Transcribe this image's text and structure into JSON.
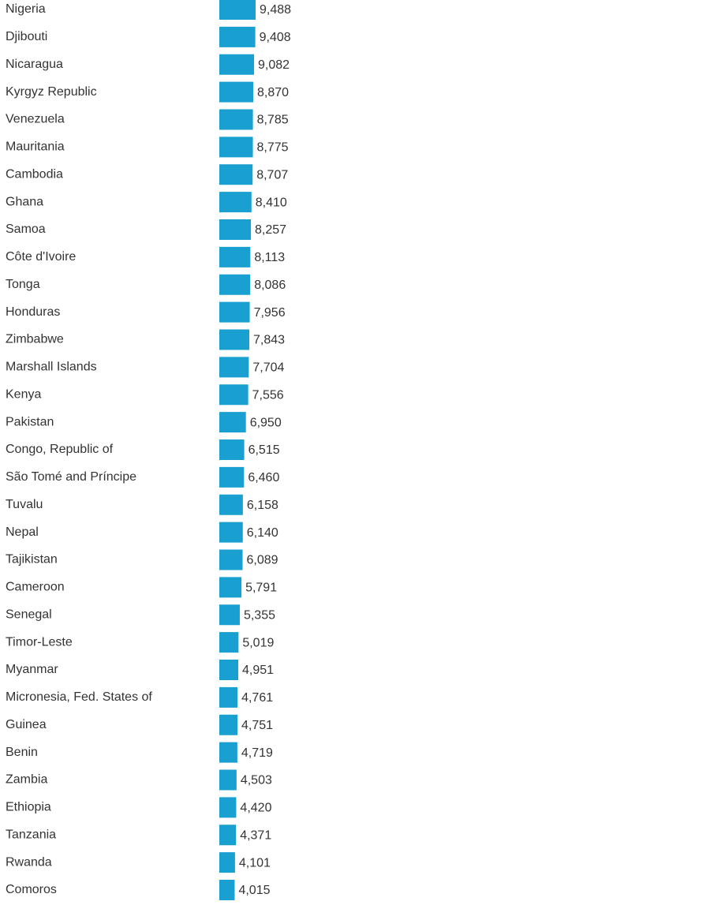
{
  "chart_data": {
    "type": "bar",
    "orientation": "horizontal",
    "color": "#1a9fd1",
    "categories": [
      "Nigeria",
      "Djibouti",
      "Nicaragua",
      "Kyrgyz Republic",
      "Venezuela",
      "Mauritania",
      "Cambodia",
      "Ghana",
      "Samoa",
      "Côte d'Ivoire",
      "Tonga",
      "Honduras",
      "Zimbabwe",
      "Marshall Islands",
      "Kenya",
      "Pakistan",
      "Congo, Republic of",
      "São Tomé and Príncipe",
      "Tuvalu",
      "Nepal",
      "Tajikistan",
      "Cameroon",
      "Senegal",
      "Timor-Leste",
      "Myanmar",
      "Micronesia, Fed. States of",
      "Guinea",
      "Benin",
      "Zambia",
      "Ethiopia",
      "Tanzania",
      "Rwanda",
      "Comoros"
    ],
    "values": [
      9488,
      9408,
      9082,
      8870,
      8785,
      8775,
      8707,
      8410,
      8257,
      8113,
      8086,
      7956,
      7843,
      7704,
      7556,
      6950,
      6515,
      6460,
      6158,
      6140,
      6089,
      5791,
      5355,
      5019,
      4951,
      4761,
      4751,
      4719,
      4503,
      4420,
      4371,
      4101,
      4015
    ],
    "value_labels": [
      "9,488",
      "9,408",
      "9,082",
      "8,870",
      "8,785",
      "8,775",
      "8,707",
      "8,410",
      "8,257",
      "8,113",
      "8,086",
      "7,956",
      "7,843",
      "7,704",
      "7,556",
      "6,950",
      "6,515",
      "6,460",
      "6,158",
      "6,140",
      "6,089",
      "5,791",
      "5,355",
      "5,019",
      "4,951",
      "4,761",
      "4,751",
      "4,719",
      "4,503",
      "4,420",
      "4,371",
      "4,101",
      "4,015"
    ]
  }
}
